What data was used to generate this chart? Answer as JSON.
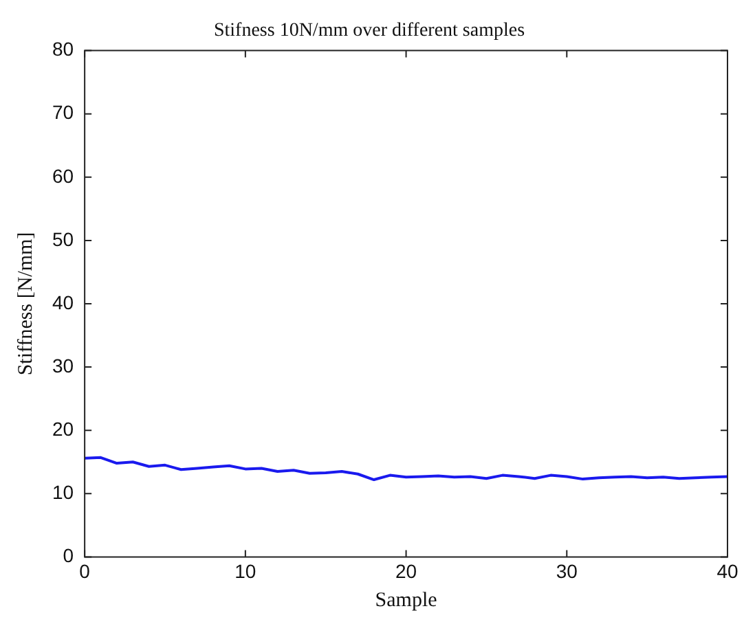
{
  "chart_data": {
    "type": "line",
    "title": "Stifness 10N/mm over different samples",
    "xlabel": "Sample",
    "ylabel": "Stiffness [N/mm]",
    "x": [
      0,
      1,
      2,
      3,
      4,
      5,
      6,
      7,
      8,
      9,
      10,
      11,
      12,
      13,
      14,
      15,
      16,
      17,
      18,
      19,
      20,
      21,
      22,
      23,
      24,
      25,
      26,
      27,
      28,
      29,
      30,
      31,
      32,
      33,
      34,
      35,
      36,
      37,
      38,
      39,
      40
    ],
    "series": [
      {
        "color": "#1a1aee",
        "values": [
          15.6,
          15.7,
          14.8,
          15.0,
          14.3,
          14.5,
          13.8,
          14.0,
          14.2,
          14.4,
          13.9,
          14.0,
          13.5,
          13.7,
          13.2,
          13.3,
          13.5,
          13.1,
          12.2,
          12.9,
          12.6,
          12.7,
          12.8,
          12.6,
          12.7,
          12.4,
          12.9,
          12.7,
          12.4,
          12.9,
          12.7,
          12.3,
          12.5,
          12.6,
          12.7,
          12.5,
          12.6,
          12.4,
          12.5,
          12.6,
          12.7
        ]
      }
    ],
    "xlim": [
      0,
      40
    ],
    "xticks": [
      0,
      10,
      20,
      30,
      40
    ],
    "ylim": [
      0,
      80
    ],
    "yticks": [
      0,
      10,
      20,
      30,
      40,
      50,
      60,
      70,
      80
    ],
    "grid": false,
    "legend": false,
    "marker": "none",
    "line_style": "solid"
  }
}
